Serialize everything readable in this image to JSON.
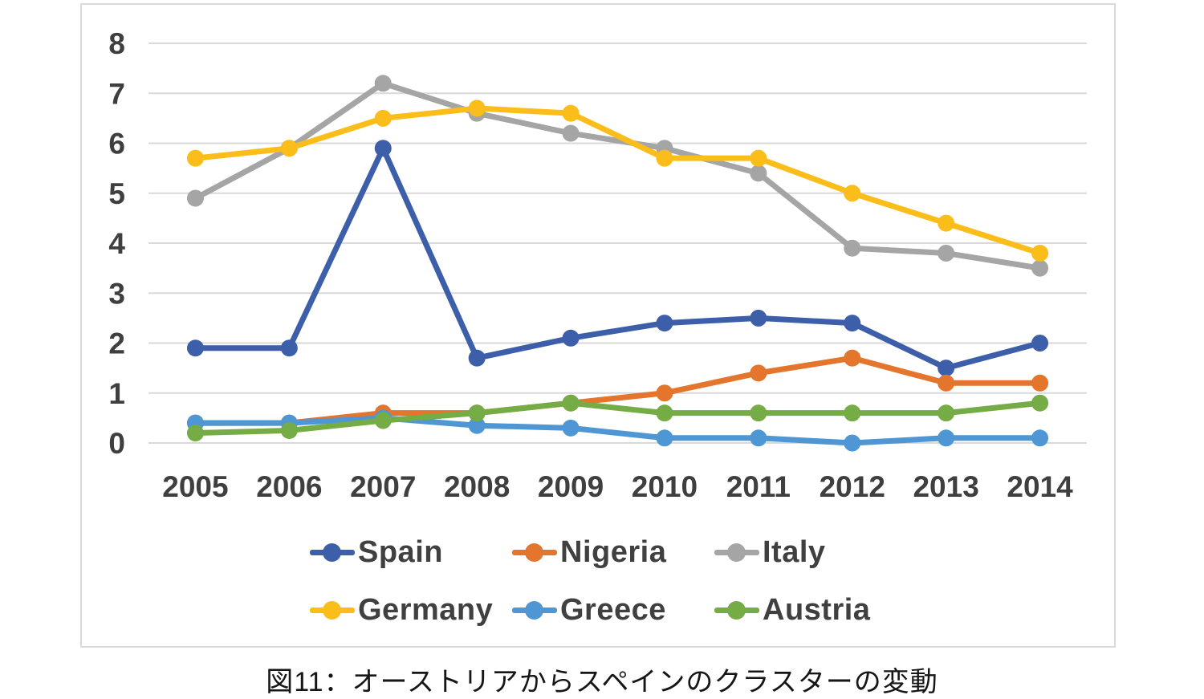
{
  "figure": {
    "caption": "図11：オーストリアからスペインのクラスターの変動"
  },
  "colors": {
    "grid": "#d9d9d9",
    "panel_border": "#dadada",
    "axis_text": "#3f3f3f",
    "legend_text": "#404040",
    "background": "#ffffff"
  },
  "chart_data": {
    "type": "line",
    "title": "",
    "xlabel": "",
    "ylabel": "",
    "categories": [
      "2005",
      "2006",
      "2007",
      "2008",
      "2009",
      "2010",
      "2011",
      "2012",
      "2013",
      "2014"
    ],
    "series": [
      {
        "name": "Spain",
        "color": "#3d5ea9",
        "values": [
          1.9,
          1.9,
          5.9,
          1.7,
          2.1,
          2.4,
          2.5,
          2.4,
          1.5,
          2.0
        ]
      },
      {
        "name": "Nigeria",
        "color": "#e3752d",
        "values": [
          0.4,
          0.4,
          0.6,
          0.6,
          0.8,
          1.0,
          1.4,
          1.7,
          1.2,
          1.2
        ]
      },
      {
        "name": "Italy",
        "color": "#a5a5a5",
        "values": [
          4.9,
          5.9,
          7.2,
          6.6,
          6.2,
          5.9,
          5.4,
          3.9,
          3.8,
          3.5
        ]
      },
      {
        "name": "Germany",
        "color": "#fbbd1a",
        "values": [
          5.7,
          5.9,
          6.5,
          6.7,
          6.6,
          5.7,
          5.7,
          5.0,
          4.4,
          3.8
        ]
      },
      {
        "name": "Greece",
        "color": "#4f97d4",
        "values": [
          0.4,
          0.4,
          0.5,
          0.35,
          0.3,
          0.1,
          0.1,
          0.0,
          0.1,
          0.1
        ]
      },
      {
        "name": "Austria",
        "color": "#76ac45",
        "values": [
          0.2,
          0.25,
          0.45,
          0.6,
          0.8,
          0.6,
          0.6,
          0.6,
          0.6,
          0.8
        ]
      }
    ],
    "ylim": [
      0,
      8
    ],
    "yticks": [
      0,
      1,
      2,
      3,
      4,
      5,
      6,
      7,
      8
    ],
    "grid": true,
    "legend_position": "bottom",
    "legend_rows": [
      [
        "Spain",
        "Nigeria",
        "Italy"
      ],
      [
        "Germany",
        "Greece",
        "Austria"
      ]
    ]
  }
}
